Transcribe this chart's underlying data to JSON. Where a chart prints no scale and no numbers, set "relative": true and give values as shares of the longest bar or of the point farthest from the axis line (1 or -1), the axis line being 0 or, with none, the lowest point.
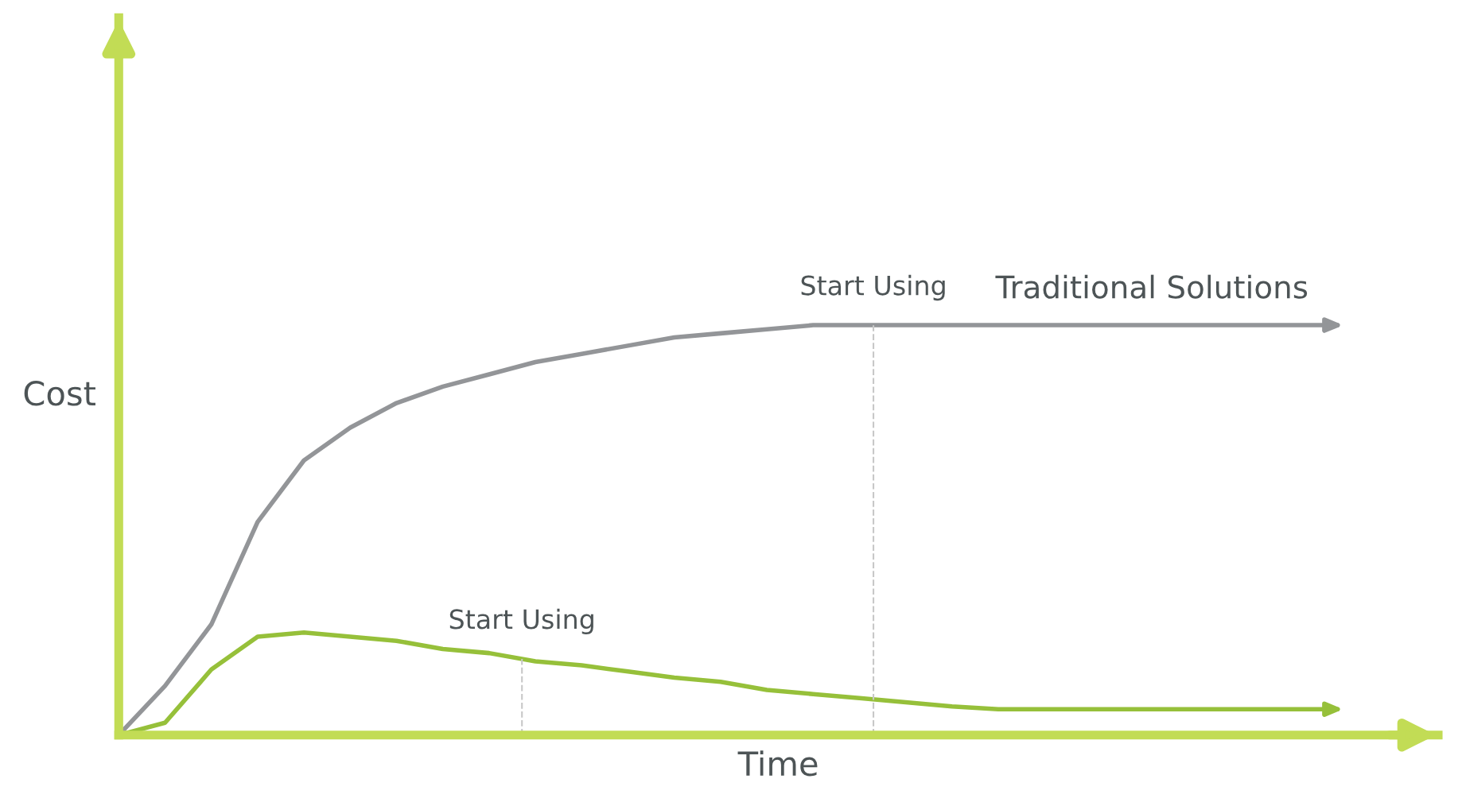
{
  "chart_data": {
    "type": "line",
    "relative": true,
    "xlabel": "Time",
    "ylabel": "Cost",
    "categories": [
      null,
      null,
      null,
      null,
      null,
      null,
      null,
      null,
      null,
      null,
      null,
      null,
      null,
      null,
      null,
      null,
      null,
      null,
      null,
      null,
      null,
      null,
      null,
      null,
      null,
      null,
      null
    ],
    "series": [
      {
        "name": "Traditional Solutions",
        "color": "#939598",
        "values": [
          0,
          0.12,
          0.27,
          0.52,
          0.67,
          0.75,
          0.81,
          0.85,
          0.88,
          0.91,
          0.93,
          0.95,
          0.97,
          0.98,
          0.99,
          1,
          1,
          1,
          1,
          1,
          1,
          1,
          1,
          1,
          1,
          1,
          1
        ]
      },
      {
        "color": "#96c03a",
        "values": [
          0,
          0.03,
          0.16,
          0.24,
          0.25,
          0.24,
          0.23,
          0.21,
          0.2,
          0.18,
          0.17,
          0.155,
          0.14,
          0.13,
          0.11,
          0.1,
          0.09,
          0.08,
          0.07,
          0.063,
          0.063,
          0.063,
          0.063,
          0.063,
          0.063,
          0.063,
          0.063
        ]
      }
    ],
    "annotations": [
      "Start Using",
      "Start Using"
    ],
    "legend": false,
    "marker": "none",
    "line_style": "solid"
  }
}
